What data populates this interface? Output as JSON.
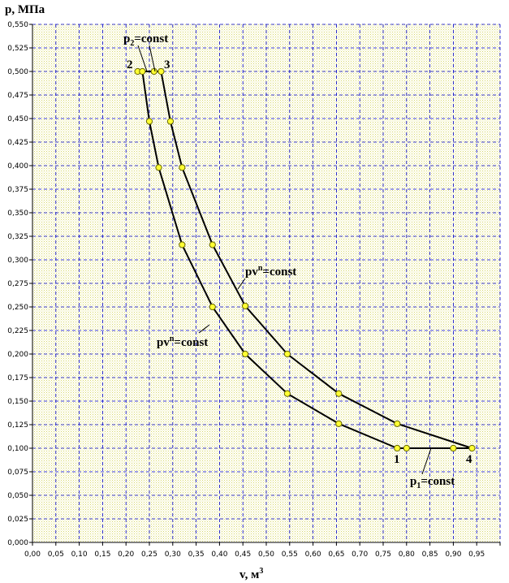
{
  "chart_data": {
    "type": "line",
    "ylabel": "p, МПа",
    "xlabel": "v, м",
    "xlabel_sup": "3",
    "xlim": [
      0,
      1.0
    ],
    "ylim": [
      0,
      0.55
    ],
    "x_ticks": [
      "0,00",
      "0,05",
      "0,10",
      "0,15",
      "0,20",
      "0,25",
      "0,30",
      "0,35",
      "0,40",
      "0,45",
      "0,50",
      "0,55",
      "0,60",
      "0,65",
      "0,70",
      "0,75",
      "0,80",
      "0,85",
      "0,90",
      "0,95"
    ],
    "y_ticks": [
      "0,000",
      "0,025",
      "0,050",
      "0,075",
      "0,100",
      "0,125",
      "0,150",
      "0,175",
      "0,200",
      "0,225",
      "0,250",
      "0,275",
      "0,300",
      "0,325",
      "0,350",
      "0,375",
      "0,400",
      "0,425",
      "0,450",
      "0,475",
      "0,500",
      "0,525",
      "0,550"
    ],
    "grid": true,
    "series": [
      {
        "points": [
          [
            0.78,
            0.1
          ],
          [
            0.655,
            0.126
          ],
          [
            0.545,
            0.158
          ],
          [
            0.455,
            0.2
          ],
          [
            0.385,
            0.25
          ],
          [
            0.32,
            0.316
          ],
          [
            0.27,
            0.398
          ],
          [
            0.25,
            0.447
          ],
          [
            0.235,
            0.5
          ]
        ]
      },
      {
        "points": [
          [
            0.24,
            0.5
          ],
          [
            0.26,
            0.5
          ],
          [
            0.27,
            0.5
          ]
        ]
      },
      {
        "points": [
          [
            0.275,
            0.5
          ],
          [
            0.295,
            0.447
          ],
          [
            0.32,
            0.398
          ],
          [
            0.385,
            0.316
          ],
          [
            0.455,
            0.251
          ],
          [
            0.545,
            0.2
          ],
          [
            0.655,
            0.158
          ],
          [
            0.78,
            0.126
          ],
          [
            0.94,
            0.1
          ]
        ]
      },
      {
        "points": [
          [
            0.94,
            0.1
          ],
          [
            0.9,
            0.1
          ],
          [
            0.8,
            0.1
          ],
          [
            0.78,
            0.1
          ]
        ]
      }
    ],
    "marker_points": [
      [
        0.78,
        0.1
      ],
      [
        0.8,
        0.1
      ],
      [
        0.9,
        0.1
      ],
      [
        0.94,
        0.1
      ],
      [
        0.655,
        0.126
      ],
      [
        0.545,
        0.158
      ],
      [
        0.455,
        0.2
      ],
      [
        0.385,
        0.25
      ],
      [
        0.32,
        0.316
      ],
      [
        0.27,
        0.398
      ],
      [
        0.25,
        0.447
      ],
      [
        0.225,
        0.5
      ],
      [
        0.235,
        0.5
      ],
      [
        0.26,
        0.5
      ],
      [
        0.275,
        0.5
      ],
      [
        0.295,
        0.447
      ],
      [
        0.32,
        0.398
      ],
      [
        0.385,
        0.316
      ],
      [
        0.455,
        0.251
      ],
      [
        0.545,
        0.2
      ],
      [
        0.655,
        0.158
      ],
      [
        0.78,
        0.126
      ]
    ],
    "annotations": {
      "p2_main": "p",
      "p2_sub": "2",
      "p2_rest": "=const",
      "p1_main": "p",
      "p1_sub": "1",
      "p1_rest": "=const",
      "pvn_main": "pv",
      "pvn_sup": "n",
      "pvn_rest": "=const",
      "point1": "1",
      "point2": "2",
      "point3": "3",
      "point4": "4"
    },
    "colors": {
      "grid": "#0000cc",
      "line": "#000000",
      "marker_fill": "#ffff33",
      "marker_stroke": "#666600",
      "background": "#ffffff"
    }
  }
}
